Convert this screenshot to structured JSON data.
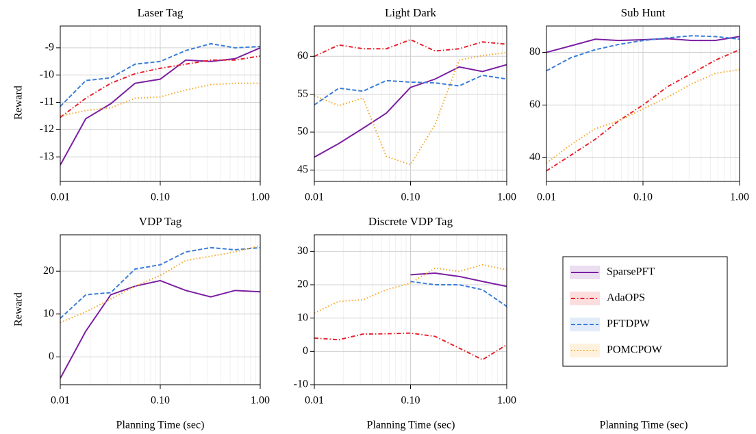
{
  "xlabel": "Planning Time (sec)",
  "ylabel": "Reward",
  "chart_data": [
    {
      "type": "line",
      "title": "Laser Tag",
      "log_x": true,
      "grid": true,
      "x": [
        0.01,
        0.018,
        0.032,
        0.056,
        0.1,
        0.18,
        0.32,
        0.56,
        1.0
      ],
      "xlim": [
        0.01,
        1.0
      ],
      "xticks": [
        0.01,
        {
          "value": 0.1,
          "label": "0.10"
        },
        {
          "value": 1.0,
          "label": "1.00"
        }
      ],
      "ylim": [
        -13.9,
        -8.2
      ],
      "yticks": [
        -13,
        -12,
        -11,
        -10,
        -9
      ],
      "series": [
        {
          "name": "SparsePFT",
          "color": "#7b1fa2",
          "linestyle": "solid",
          "values": [
            -13.3,
            -11.6,
            -11.05,
            -10.3,
            -10.15,
            -9.45,
            -9.5,
            -9.4,
            -9.0
          ]
        },
        {
          "name": "AdaOPS",
          "color": "#e8202a",
          "linestyle": "dashdot",
          "values": [
            -11.55,
            -10.85,
            -10.3,
            -9.95,
            -9.75,
            -9.6,
            -9.45,
            -9.45,
            -9.3
          ]
        },
        {
          "name": "PFTDPW",
          "color": "#3b7dd8",
          "linestyle": "dashed",
          "values": [
            -11.15,
            -10.2,
            -10.1,
            -9.6,
            -9.5,
            -9.1,
            -8.85,
            -9.0,
            -8.95
          ]
        },
        {
          "name": "POMCPOW",
          "color": "#f5a623",
          "linestyle": "dotted",
          "values": [
            -11.5,
            -11.3,
            -11.2,
            -10.85,
            -10.8,
            -10.55,
            -10.35,
            -10.3,
            -10.3
          ]
        }
      ]
    },
    {
      "type": "line",
      "title": "Light Dark",
      "log_x": true,
      "grid": true,
      "x": [
        0.01,
        0.018,
        0.032,
        0.056,
        0.1,
        0.18,
        0.32,
        0.56,
        1.0
      ],
      "xlim": [
        0.01,
        1.0
      ],
      "xticks": [
        0.01,
        {
          "value": 0.1,
          "label": "0.10"
        },
        {
          "value": 1.0,
          "label": "1.00"
        }
      ],
      "ylim": [
        43.5,
        64
      ],
      "yticks": [
        45,
        50,
        55,
        60
      ],
      "series": [
        {
          "name": "SparsePFT",
          "color": "#7b1fa2",
          "linestyle": "solid",
          "values": [
            46.7,
            48.5,
            50.5,
            52.5,
            55.9,
            57.0,
            58.6,
            58.0,
            58.9
          ]
        },
        {
          "name": "AdaOPS",
          "color": "#e8202a",
          "linestyle": "dashdot",
          "values": [
            60.0,
            61.5,
            61.0,
            61.0,
            62.2,
            60.7,
            61.0,
            61.9,
            61.6
          ]
        },
        {
          "name": "PFTDPW",
          "color": "#3b7dd8",
          "linestyle": "dashed",
          "values": [
            53.6,
            55.8,
            55.4,
            56.8,
            56.6,
            56.5,
            56.1,
            57.5,
            57.0
          ]
        },
        {
          "name": "POMCPOW",
          "color": "#f5a623",
          "linestyle": "dotted",
          "values": [
            54.8,
            53.5,
            54.5,
            46.8,
            45.7,
            51.0,
            59.5,
            60.1,
            60.5
          ]
        }
      ]
    },
    {
      "type": "line",
      "title": "Sub Hunt",
      "log_x": true,
      "grid": true,
      "x": [
        0.01,
        0.018,
        0.032,
        0.056,
        0.1,
        0.18,
        0.32,
        0.56,
        1.0
      ],
      "xlim": [
        0.01,
        1.0
      ],
      "xticks": [
        0.01,
        {
          "value": 0.1,
          "label": "0.10"
        },
        {
          "value": 1.0,
          "label": "1.00"
        }
      ],
      "ylim": [
        31,
        90
      ],
      "yticks": [
        40,
        60,
        80
      ],
      "series": [
        {
          "name": "SparsePFT",
          "color": "#7b1fa2",
          "linestyle": "solid",
          "values": [
            80,
            82.5,
            85,
            84.5,
            84.8,
            85.2,
            84.5,
            84.5,
            86
          ]
        },
        {
          "name": "AdaOPS",
          "color": "#e8202a",
          "linestyle": "dashdot",
          "values": [
            35,
            41,
            47,
            54,
            60,
            67,
            72,
            77,
            81
          ]
        },
        {
          "name": "PFTDPW",
          "color": "#3b7dd8",
          "linestyle": "dashed",
          "values": [
            73,
            78,
            81,
            83,
            84.5,
            85.5,
            86.3,
            86,
            85
          ]
        },
        {
          "name": "POMCPOW",
          "color": "#f5a623",
          "linestyle": "dotted",
          "values": [
            38,
            45,
            51,
            54,
            58.5,
            63,
            68,
            72,
            73.5
          ]
        }
      ]
    },
    {
      "type": "line",
      "title": "VDP Tag",
      "log_x": true,
      "grid": true,
      "x": [
        0.01,
        0.018,
        0.032,
        0.056,
        0.1,
        0.18,
        0.32,
        0.56,
        1.0
      ],
      "xlim": [
        0.01,
        1.0
      ],
      "xticks": [
        0.01,
        {
          "value": 0.1,
          "label": "0.10"
        },
        {
          "value": 1.0,
          "label": "1.00"
        }
      ],
      "ylim": [
        -6.5,
        28.5
      ],
      "yticks": [
        0,
        10,
        20
      ],
      "series": [
        {
          "name": "SparsePFT",
          "color": "#7b1fa2",
          "linestyle": "solid",
          "values": [
            -5,
            6,
            14.5,
            16.5,
            17.8,
            15.5,
            14,
            15.5,
            15.2
          ]
        },
        {
          "name": "PFTDPW",
          "color": "#3b7dd8",
          "linestyle": "dashed",
          "values": [
            9,
            14.5,
            15,
            20.5,
            21.5,
            24.5,
            25.5,
            25,
            25.5
          ]
        },
        {
          "name": "POMCPOW",
          "color": "#f5a623",
          "linestyle": "dotted",
          "values": [
            8,
            10.5,
            13.5,
            16.5,
            19,
            22.5,
            23.5,
            24.5,
            26
          ]
        }
      ]
    },
    {
      "type": "line",
      "title": "Discrete VDP Tag",
      "log_x": true,
      "grid": true,
      "x": [
        0.01,
        0.018,
        0.032,
        0.056,
        0.1,
        0.18,
        0.32,
        0.56,
        1.0
      ],
      "xlim": [
        0.01,
        1.0
      ],
      "xticks": [
        0.01,
        {
          "value": 0.1,
          "label": "0.10"
        },
        {
          "value": 1.0,
          "label": "1.00"
        }
      ],
      "ylim": [
        -10,
        35
      ],
      "yticks": [
        -10,
        0,
        10,
        20,
        30
      ],
      "series": [
        {
          "name": "SparsePFT",
          "color": "#7b1fa2",
          "linestyle": "solid",
          "values": [
            null,
            null,
            null,
            null,
            23,
            23.5,
            22.5,
            21,
            19.5
          ]
        },
        {
          "name": "AdaOPS",
          "color": "#e8202a",
          "linestyle": "dashdot",
          "values": [
            4,
            3.5,
            5.2,
            5.3,
            5.5,
            4.5,
            1,
            -2.5,
            2
          ]
        },
        {
          "name": "PFTDPW",
          "color": "#3b7dd8",
          "linestyle": "dashed",
          "values": [
            null,
            null,
            null,
            null,
            21,
            20,
            20,
            18.5,
            13.5
          ]
        },
        {
          "name": "POMCPOW",
          "color": "#f5a623",
          "linestyle": "dotted",
          "values": [
            11.5,
            15,
            15.5,
            18.5,
            20.5,
            25,
            24,
            26,
            24.5
          ]
        }
      ]
    }
  ]
}
